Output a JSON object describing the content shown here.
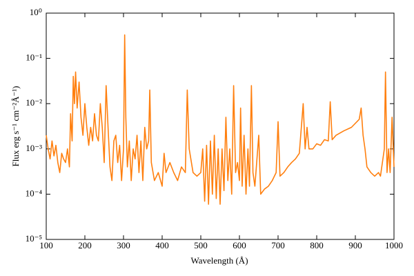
{
  "chart_data": {
    "type": "line",
    "xlabel": "Wavelength (Å)",
    "ylabel": "Flux erg s⁻¹ cm⁻²Å⁻¹)",
    "yscale": "log",
    "xlim": [
      100,
      1000
    ],
    "ylim": [
      1e-05,
      1
    ],
    "xticks": [
      100,
      200,
      300,
      400,
      500,
      600,
      700,
      800,
      900,
      1000
    ],
    "yticks": [
      {
        "value": 1e-05,
        "label": "10⁻⁵"
      },
      {
        "value": 0.0001,
        "label": "10⁻⁴"
      },
      {
        "value": 0.001,
        "label": "10⁻³"
      },
      {
        "value": 0.01,
        "label": "10⁻²"
      },
      {
        "value": 0.1,
        "label": "10⁻¹"
      },
      {
        "value": 1,
        "label": "10⁰"
      }
    ],
    "series": [
      {
        "color": "#ff7f0e",
        "x": [
          100,
          105,
          110,
          115,
          120,
          125,
          130,
          135,
          140,
          145,
          150,
          155,
          160,
          163,
          167,
          170,
          173,
          176,
          180,
          185,
          190,
          195,
          200,
          205,
          210,
          215,
          220,
          225,
          230,
          235,
          240,
          245,
          250,
          255,
          260,
          265,
          270,
          275,
          280,
          285,
          290,
          295,
          300,
          303,
          306,
          310,
          315,
          320,
          325,
          330,
          335,
          340,
          345,
          350,
          355,
          360,
          365,
          368,
          372,
          380,
          390,
          400,
          405,
          410,
          420,
          430,
          440,
          450,
          460,
          465,
          470,
          480,
          490,
          500,
          505,
          510,
          515,
          520,
          525,
          530,
          535,
          540,
          545,
          550,
          555,
          560,
          565,
          570,
          575,
          580,
          585,
          590,
          595,
          600,
          603,
          607,
          612,
          617,
          622,
          626,
          631,
          635,
          640,
          650,
          655,
          665,
          675,
          685,
          695,
          700,
          705,
          715,
          725,
          735,
          745,
          755,
          765,
          770,
          775,
          780,
          790,
          800,
          810,
          820,
          830,
          835,
          840,
          850,
          870,
          890,
          910,
          915,
          920,
          925,
          930,
          940,
          950,
          960,
          965,
          970,
          975,
          978,
          982,
          986,
          990,
          995,
          1000
        ],
        "values": [
          0.002,
          0.001,
          0.0006,
          0.0015,
          0.0007,
          0.0012,
          0.0005,
          0.0003,
          0.0008,
          0.0006,
          0.0005,
          0.001,
          0.0004,
          0.006,
          0.0015,
          0.04,
          0.01,
          0.05,
          0.008,
          0.03,
          0.005,
          0.002,
          0.01,
          0.003,
          0.0012,
          0.003,
          0.0015,
          0.006,
          0.002,
          0.0015,
          0.01,
          0.003,
          0.0005,
          0.025,
          0.003,
          0.0004,
          0.0002,
          0.0015,
          0.002,
          0.0005,
          0.0012,
          0.0002,
          0.001,
          0.33,
          0.005,
          0.0004,
          0.0015,
          0.0002,
          0.001,
          0.0006,
          0.002,
          0.0003,
          0.0015,
          0.0002,
          0.003,
          0.001,
          0.0015,
          0.02,
          0.0005,
          0.0002,
          0.0003,
          0.00015,
          0.0008,
          0.0003,
          0.0005,
          0.0003,
          0.0002,
          0.0004,
          0.0003,
          0.02,
          0.001,
          0.0003,
          0.00025,
          0.0003,
          0.001,
          7e-05,
          0.0012,
          6e-05,
          0.0015,
          0.0001,
          0.002,
          8e-05,
          0.001,
          6e-05,
          0.001,
          0.00012,
          0.005,
          0.0002,
          0.001,
          0.0001,
          0.025,
          0.0003,
          0.0005,
          0.0002,
          0.008,
          0.00015,
          0.002,
          0.0001,
          0.001,
          0.00015,
          0.025,
          0.0003,
          0.00015,
          0.002,
          0.0001,
          0.00013,
          0.00015,
          0.0002,
          0.0003,
          0.004,
          0.00025,
          0.0003,
          0.0004,
          0.0005,
          0.0006,
          0.0008,
          0.01,
          0.001,
          0.003,
          0.001,
          0.001,
          0.0013,
          0.0012,
          0.0016,
          0.0015,
          0.011,
          0.0016,
          0.002,
          0.0025,
          0.003,
          0.0045,
          0.008,
          0.002,
          0.001,
          0.0004,
          0.0003,
          0.00025,
          0.0003,
          0.00025,
          0.0005,
          0.001,
          0.05,
          0.0003,
          0.001,
          0.0003,
          0.005,
          0.0004
        ]
      }
    ]
  }
}
